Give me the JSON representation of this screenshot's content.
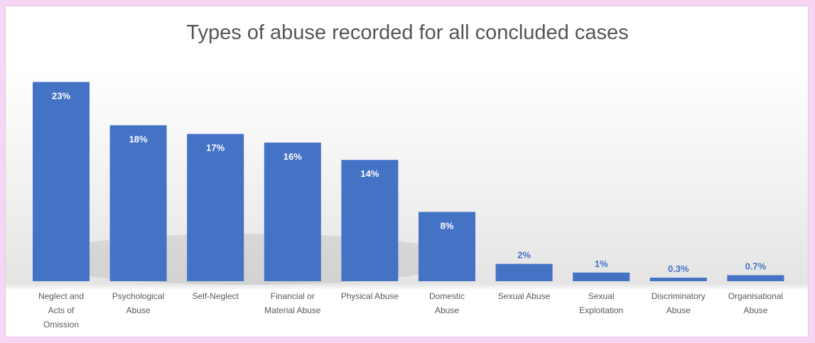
{
  "chart_data": {
    "type": "bar",
    "title": "Types of abuse recorded for all concluded cases",
    "xlabel": "",
    "ylabel": "",
    "ylim": [
      0,
      25
    ],
    "grid": false,
    "legend": "none",
    "categories": [
      [
        "Neglect and",
        "Acts of",
        "Omission"
      ],
      [
        "Psychological",
        "Abuse"
      ],
      [
        "Self-Neglect"
      ],
      [
        "Financial or",
        "Material Abuse"
      ],
      [
        "Physical Abuse"
      ],
      [
        "Domestic",
        "Abuse"
      ],
      [
        "Sexual Abuse"
      ],
      [
        "Sexual",
        "Exploitation"
      ],
      [
        "Discriminatory",
        "Abuse"
      ],
      [
        "Organisational",
        "Abuse"
      ]
    ],
    "values": [
      23,
      18,
      17,
      16,
      14,
      8,
      2,
      1,
      0.3,
      0.7
    ],
    "data_labels": [
      "23%",
      "18%",
      "17%",
      "16%",
      "14%",
      "8%",
      "2%",
      "1%",
      "0.3%",
      "0.7%"
    ],
    "colors": {
      "bar": "#4472c4",
      "label_inside": "#ffffff",
      "label_outside": "#4472c4",
      "frame": "#e6c3e2",
      "page_bg": "#f6d6f3"
    }
  }
}
